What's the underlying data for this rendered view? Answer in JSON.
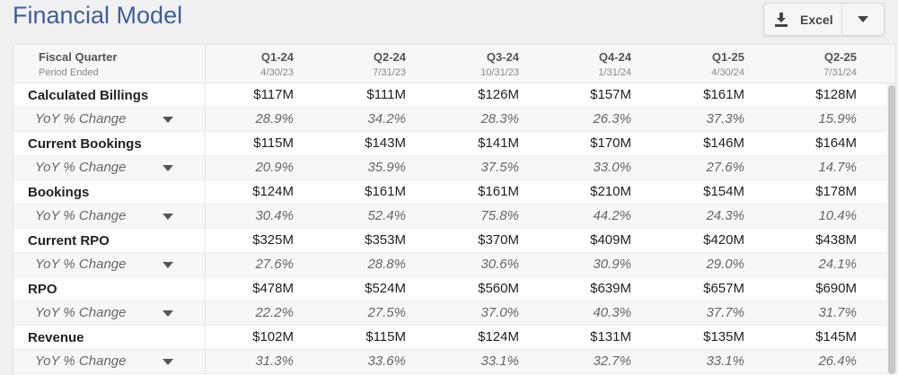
{
  "title": "Financial Model",
  "export_button": {
    "label": "Excel",
    "icon": "download-icon",
    "caret_icon": "caret-down-icon"
  },
  "header": {
    "label": "Fiscal Quarter",
    "sublabel": "Period Ended",
    "quarters": [
      {
        "label": "Q1-24",
        "date": "4/30/23"
      },
      {
        "label": "Q2-24",
        "date": "7/31/23"
      },
      {
        "label": "Q3-24",
        "date": "10/31/23"
      },
      {
        "label": "Q4-24",
        "date": "1/31/24"
      },
      {
        "label": "Q1-25",
        "date": "4/30/24"
      },
      {
        "label": "Q2-25",
        "date": "7/31/24"
      }
    ]
  },
  "rows": [
    {
      "type": "main",
      "label": "Calculated Billings",
      "values": [
        "$117M",
        "$111M",
        "$126M",
        "$157M",
        "$161M",
        "$128M"
      ]
    },
    {
      "type": "sub",
      "label": "YoY % Change",
      "values": [
        "28.9%",
        "34.2%",
        "28.3%",
        "26.3%",
        "37.3%",
        "15.9%"
      ]
    },
    {
      "type": "main",
      "label": "Current Bookings",
      "values": [
        "$115M",
        "$143M",
        "$141M",
        "$170M",
        "$146M",
        "$164M"
      ]
    },
    {
      "type": "sub",
      "label": "YoY % Change",
      "values": [
        "20.9%",
        "35.9%",
        "37.5%",
        "33.0%",
        "27.6%",
        "14.7%"
      ]
    },
    {
      "type": "main",
      "label": "Bookings",
      "values": [
        "$124M",
        "$161M",
        "$161M",
        "$210M",
        "$154M",
        "$178M"
      ]
    },
    {
      "type": "sub",
      "label": "YoY % Change",
      "values": [
        "30.4%",
        "52.4%",
        "75.8%",
        "44.2%",
        "24.3%",
        "10.4%"
      ]
    },
    {
      "type": "main",
      "label": "Current RPO",
      "values": [
        "$325M",
        "$353M",
        "$370M",
        "$409M",
        "$420M",
        "$438M"
      ]
    },
    {
      "type": "sub",
      "label": "YoY % Change",
      "values": [
        "27.6%",
        "28.8%",
        "30.6%",
        "30.9%",
        "29.0%",
        "24.1%"
      ]
    },
    {
      "type": "main",
      "label": "RPO",
      "values": [
        "$478M",
        "$524M",
        "$560M",
        "$639M",
        "$657M",
        "$690M"
      ]
    },
    {
      "type": "sub",
      "label": "YoY % Change",
      "values": [
        "22.2%",
        "27.5%",
        "37.0%",
        "40.3%",
        "37.7%",
        "31.7%"
      ]
    },
    {
      "type": "main",
      "label": "Revenue",
      "values": [
        "$102M",
        "$115M",
        "$124M",
        "$131M",
        "$135M",
        "$145M"
      ]
    },
    {
      "type": "sub",
      "label": "YoY % Change",
      "values": [
        "31.3%",
        "33.6%",
        "33.1%",
        "32.7%",
        "33.1%",
        "26.4%"
      ]
    }
  ],
  "colors": {
    "title": "#3f5f9c",
    "text": "#222222",
    "subtext": "#666666",
    "band": "#f7f7f7"
  }
}
